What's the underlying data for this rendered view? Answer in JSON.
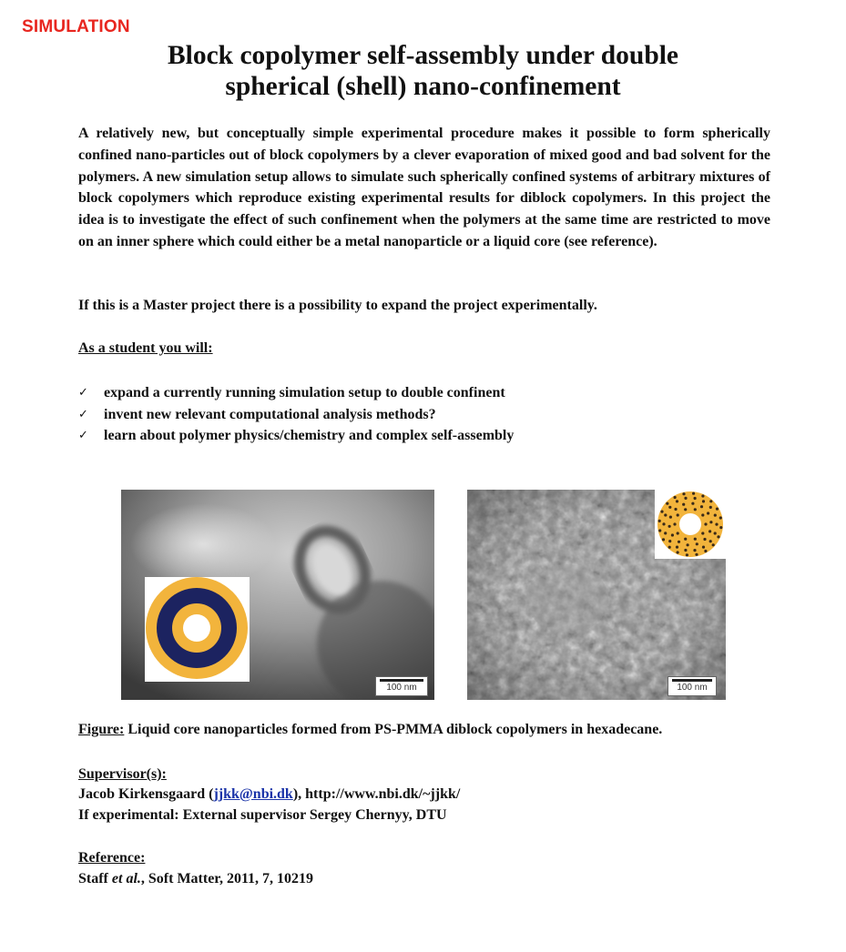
{
  "category_tag": "SIMULATION",
  "title": {
    "line1": "Block copolymer self-assembly under double",
    "line2": "spherical (shell) nano-confinement"
  },
  "description": "A relatively new, but conceptually simple experimental procedure makes it possible to form spherically confined nano-particles out of block copolymers by a clever evaporation of mixed good and bad solvent for the polymers. A new simulation setup allows to simulate such spherically confined systems of arbitrary mixtures of block copolymers which reproduce existing experimental results for diblock copolymers. In this project the idea is to investigate the effect of such confinement when the polymers at the same time are restricted to move on an inner sphere which could either be a metal nanoparticle or a liquid core (see reference).",
  "master_note": "If this is a Master project there is a possibility to expand the project experimentally.",
  "student_heading": "As a student you will:",
  "tasks": [
    "expand a currently running simulation setup to double confinent",
    "invent new relevant computational analysis methods?",
    "learn about polymer physics/chemistry and complex self-assembly"
  ],
  "check_icon": "✓",
  "images": {
    "left_scale": "100 nm",
    "right_scale": "100 nm",
    "colors": {
      "ring_gold": "#f2b43c",
      "ring_navy": "#1c2360",
      "dot": "#3a2a18"
    }
  },
  "figure": {
    "label": "Figure:",
    "caption": " Liquid core nanoparticles formed from PS-PMMA diblock copolymers in hexadecane."
  },
  "supervisor": {
    "heading": "Supervisor(s):",
    "name_prefix": "Jacob Kirkensgaard (",
    "email": "jjkk@nbi.dk",
    "name_suffix": "), http://www.nbi.dk/~jjkk/",
    "external": "If experimental: External supervisor Sergey Chernyy, DTU"
  },
  "reference": {
    "heading": "Reference:",
    "author": "Staff ",
    "etal": "et al.",
    "citation": ", Soft Matter, 2011, 7, 10219"
  }
}
